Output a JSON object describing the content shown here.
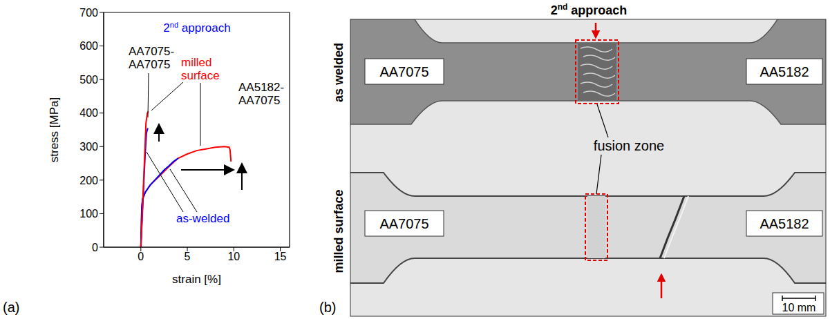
{
  "panel_labels": [
    "(a)",
    "(b)"
  ],
  "chart_data": {
    "type": "line",
    "title": "2nd approach",
    "x_label": "strain [%]",
    "y_label": "stress [MPa]",
    "xlim": [
      -4,
      16
    ],
    "ylim": [
      0,
      700
    ],
    "xticks": [
      0,
      5,
      10,
      15
    ],
    "yticks": [
      0,
      100,
      200,
      300,
      400,
      500,
      600,
      700
    ],
    "series": [
      {
        "color": "#ff0000",
        "x": [
          0,
          0.1,
          0.2,
          0.5,
          1,
          2,
          3,
          4,
          5,
          6,
          7,
          8,
          9,
          9.5,
          9.6,
          9.7
        ],
        "values": [
          0,
          120,
          145,
          165,
          185,
          212,
          240,
          265,
          278,
          288,
          293,
          298,
          300,
          298,
          290,
          255
        ]
      },
      {
        "color": "#0000ff",
        "x": [
          0,
          0.1,
          0.2,
          0.5,
          1,
          1.5,
          2,
          2.5,
          3,
          3.5,
          4
        ],
        "values": [
          0,
          120,
          145,
          165,
          185,
          200,
          215,
          230,
          242,
          255,
          265
        ]
      },
      {
        "color": "#0000ff",
        "x": [
          0,
          0.15,
          0.3,
          0.45,
          0.6,
          0.75
        ],
        "values": [
          0,
          90,
          180,
          270,
          340,
          355
        ]
      },
      {
        "color": "#ff0000",
        "x": [
          0,
          0.15,
          0.3,
          0.45,
          0.55,
          0.7,
          0.8
        ],
        "values": [
          0,
          100,
          200,
          300,
          370,
          400,
          405
        ]
      }
    ],
    "annotations": [
      {
        "text": "AA7075-AA7075",
        "color": "#000000"
      },
      {
        "text": "milled surface",
        "color": "#ff0000"
      },
      {
        "text": "AA5182-AA7075",
        "color": "#000000"
      },
      {
        "text": "as-welded",
        "color": "#0000ff"
      }
    ]
  },
  "photo": {
    "title": "2nd approach",
    "rows": [
      {
        "label": "as welded",
        "left": "AA7075",
        "right": "AA5182"
      },
      {
        "label": "milled surface",
        "left": "AA7075",
        "right": "AA5182"
      }
    ],
    "callout": "fusion zone",
    "scale_bar": "10 mm"
  }
}
